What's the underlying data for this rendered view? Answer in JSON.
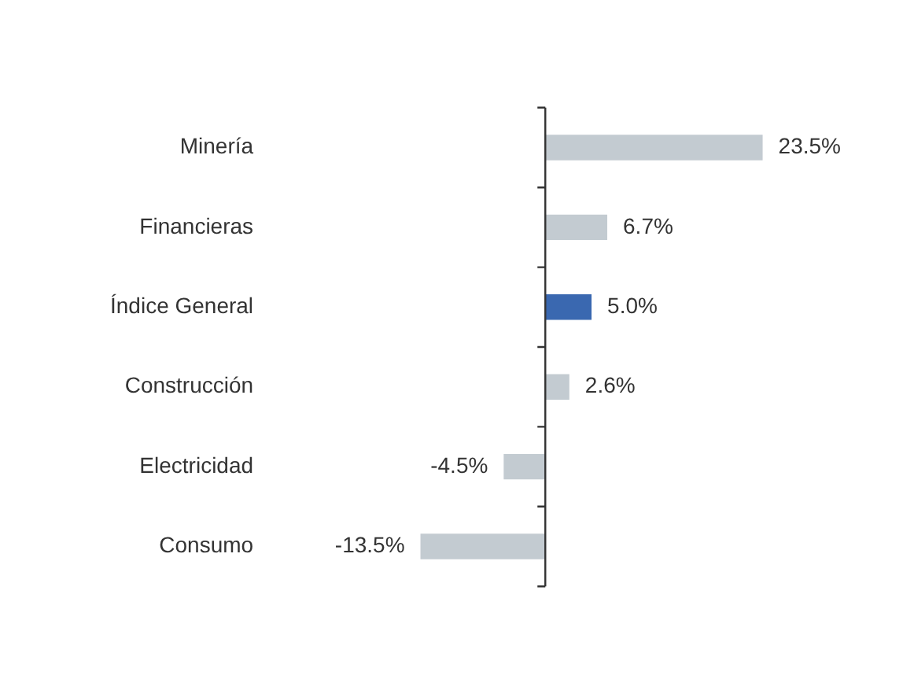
{
  "chart_data": {
    "type": "bar",
    "orientation": "horizontal",
    "categories": [
      "Minería",
      "Financieras",
      "Índice General",
      "Construcción",
      "Electricidad",
      "Consumo"
    ],
    "values": [
      23.5,
      6.7,
      5.0,
      2.6,
      -4.5,
      -13.5
    ],
    "colors": [
      "#c3cbd1",
      "#c3cbd1",
      "#3a68b0",
      "#c3cbd1",
      "#c3cbd1",
      "#c3cbd1"
    ],
    "value_labels": [
      "23.5%",
      "6.7%",
      "5.0%",
      "2.6%",
      "-4.5%",
      "-13.5%"
    ],
    "tick_labels": "y"
  }
}
